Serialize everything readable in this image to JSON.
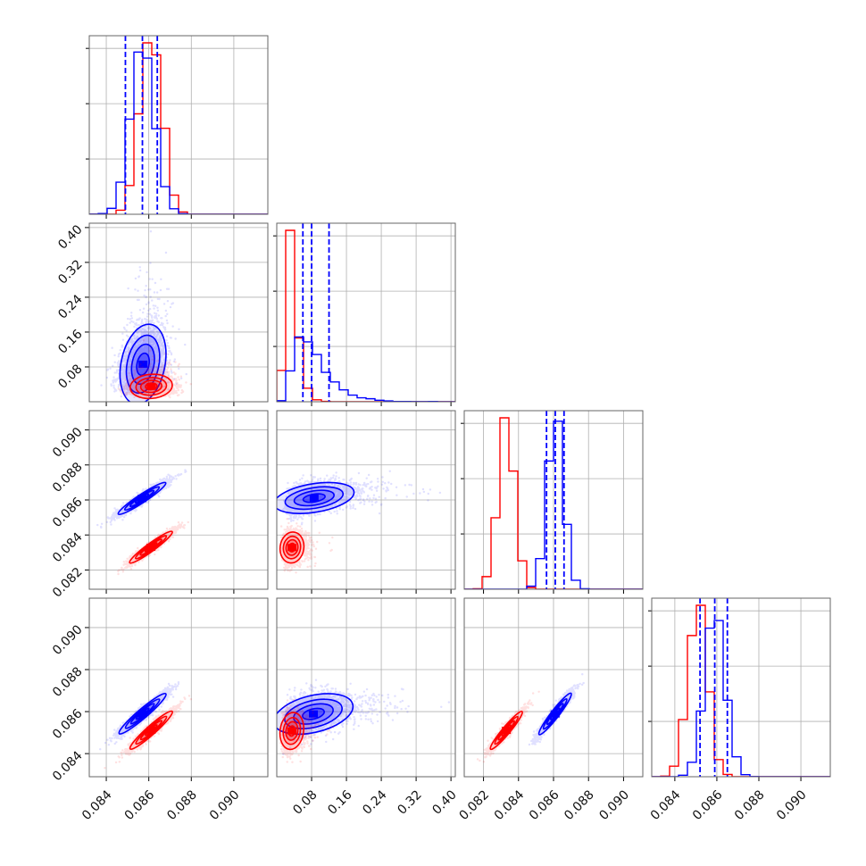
{
  "chart_data": {
    "type": "corner",
    "grid": true,
    "legend": "none",
    "title": "",
    "colors": {
      "blue": "#0000ff",
      "red": "#ff0000"
    },
    "params": [
      {
        "range": [
          0.0832,
          0.0916
        ],
        "ticks": [
          0.084,
          0.086,
          0.088,
          0.09
        ],
        "tick_labels": [
          "0.084",
          "0.086",
          "0.088",
          "0.090"
        ]
      },
      {
        "range": [
          0.0,
          0.41
        ],
        "ticks": [
          0.08,
          0.16,
          0.24,
          0.32,
          0.4
        ],
        "tick_labels": [
          "0.08",
          "0.16",
          "0.24",
          "0.32",
          "0.40"
        ]
      },
      {
        "range": [
          0.0809,
          0.0911
        ],
        "ticks": [
          0.082,
          0.084,
          0.086,
          0.088,
          0.09
        ],
        "tick_labels": [
          "0.082",
          "0.084",
          "0.086",
          "0.088",
          "0.090"
        ]
      },
      {
        "range": [
          0.0829,
          0.0914
        ],
        "ticks": [
          0.084,
          0.086,
          0.088,
          0.09
        ],
        "tick_labels": [
          "0.084",
          "0.086",
          "0.088",
          "0.090"
        ]
      }
    ],
    "series": [
      {
        "color": "#0000ff",
        "mean": [
          0.0857,
          0.085,
          0.0861,
          0.0859
        ],
        "sd": [
          0.00055,
          0.045,
          0.00045,
          0.00048
        ],
        "quantiles": [
          [
            0.0849,
            0.0857,
            0.0864
          ],
          [
            0.06,
            0.08,
            0.12
          ],
          [
            0.0856,
            0.0861,
            0.0866
          ],
          [
            0.0852,
            0.0859,
            0.0865
          ]
        ],
        "corr": [
          [
            1.0,
            0.3,
            0.95,
            0.95
          ],
          [
            0.3,
            1.0,
            0.4,
            0.4
          ],
          [
            0.95,
            0.4,
            1.0,
            0.95
          ],
          [
            0.95,
            0.4,
            0.95,
            1.0
          ]
        ]
      },
      {
        "color": "#ff0000",
        "mean": [
          0.0861,
          0.035,
          0.0833,
          0.0851
        ],
        "sd": [
          0.0005,
          0.014,
          0.00045,
          0.00045
        ],
        "corr": [
          [
            1.0,
            0.1,
            0.95,
            0.95
          ],
          [
            0.1,
            1.0,
            0.1,
            0.1
          ],
          [
            0.95,
            0.1,
            1.0,
            0.95
          ],
          [
            0.95,
            0.1,
            0.95,
            1.0
          ]
        ]
      }
    ]
  }
}
